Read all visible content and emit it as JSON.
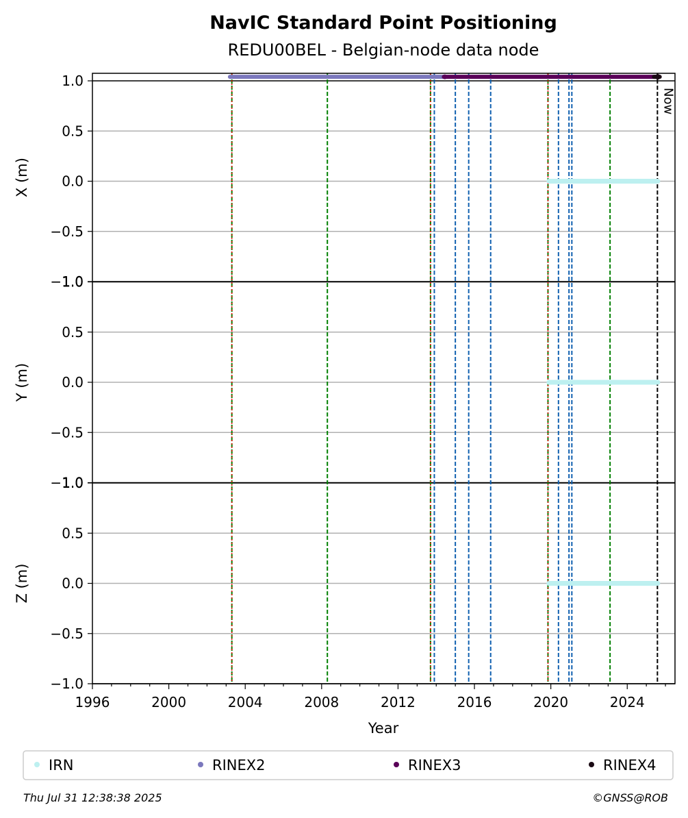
{
  "chart_data": {
    "type": "scatter",
    "title": "NavIC Standard Point Positioning",
    "subtitle": "REDU00BEL - Belgian-node data node",
    "xlabel": "Year",
    "xlim": [
      1996,
      2026.5
    ],
    "x_ticks": [
      "1996",
      "2000",
      "2004",
      "2008",
      "2012",
      "2016",
      "2020",
      "2024"
    ],
    "panels": [
      {
        "ylabel": "X (m)",
        "ylim": [
          -1.0,
          1.0
        ]
      },
      {
        "ylabel": "Y (m)",
        "ylim": [
          -1.0,
          1.0
        ]
      },
      {
        "ylabel": "Z (m)",
        "ylim": [
          -1.0,
          1.0
        ]
      }
    ],
    "y_ticks": [
      "−1.0",
      "−0.5",
      "0.0",
      "0.5",
      "1.0"
    ],
    "grid": true,
    "series": [
      {
        "name": "IRN",
        "color": "#bdf0f0",
        "x_range": [
          2019.9,
          2025.6
        ],
        "y": 0.0,
        "panels": [
          0,
          1,
          2
        ]
      },
      {
        "name": "RINEX2",
        "color": "#7b78bd",
        "x_range": [
          2003.2,
          2014.4
        ],
        "y": 1.04,
        "panels": [
          0
        ]
      },
      {
        "name": "RINEX3",
        "color": "#5a0058",
        "x_range": [
          2014.4,
          2025.5
        ],
        "y": 1.04,
        "panels": [
          0
        ]
      },
      {
        "name": "RINEX4",
        "color": "#1a0a14",
        "x_range": [
          2025.4,
          2025.7
        ],
        "y": 1.04,
        "panels": [
          0
        ]
      }
    ],
    "event_lines": [
      {
        "x": 2003.3,
        "color": "#008000"
      },
      {
        "x": 2003.3,
        "color": "#ff0000"
      },
      {
        "x": 2008.3,
        "color": "#008000"
      },
      {
        "x": 2013.7,
        "color": "#008000"
      },
      {
        "x": 2013.7,
        "color": "#ff0000"
      },
      {
        "x": 2013.9,
        "color": "#1060b0"
      },
      {
        "x": 2015.0,
        "color": "#1060b0"
      },
      {
        "x": 2015.7,
        "color": "#1060b0"
      },
      {
        "x": 2016.85,
        "color": "#1060b0"
      },
      {
        "x": 2019.85,
        "color": "#008000"
      },
      {
        "x": 2019.85,
        "color": "#ff0000"
      },
      {
        "x": 2020.4,
        "color": "#1060b0"
      },
      {
        "x": 2020.95,
        "color": "#1060b0"
      },
      {
        "x": 2021.1,
        "color": "#1060b0"
      },
      {
        "x": 2023.1,
        "color": "#008000"
      },
      {
        "x": 2025.58,
        "color": "#000000"
      }
    ],
    "now_label": "Now",
    "now_x": 2025.58,
    "legend_placement": "bottom"
  },
  "footer": {
    "timestamp": "Thu Jul 31 12:38:38 2025",
    "credit": "©GNSS@ROB"
  }
}
